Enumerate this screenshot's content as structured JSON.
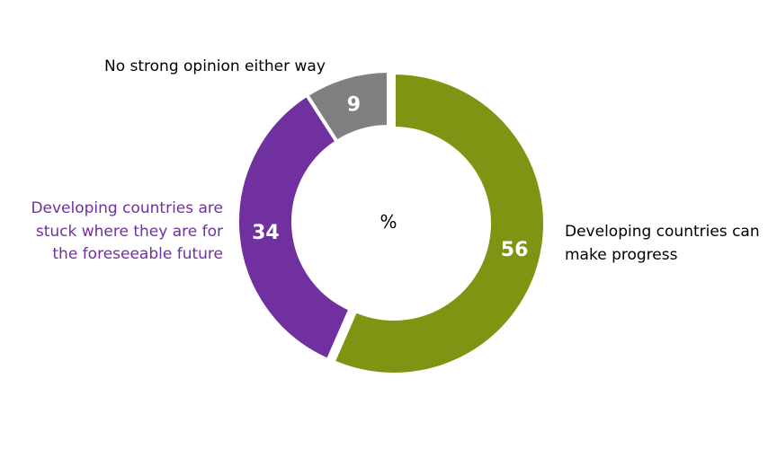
{
  "chart_data": {
    "type": "pie",
    "variant": "donut",
    "center_label": "%",
    "start": "12 o'clock, clockwise",
    "slices": [
      {
        "label": "Developing countries can make progress",
        "value": 56,
        "color": "#7f9412",
        "label_color": "#000000"
      },
      {
        "label": "Developing countries are stuck where they are for the foreseeable future",
        "value": 34,
        "color": "#7030a0",
        "label_color": "#7030a0"
      },
      {
        "label": "No strong opinion either way",
        "value": 9,
        "color": "#808080",
        "label_color": "#000000"
      }
    ]
  }
}
